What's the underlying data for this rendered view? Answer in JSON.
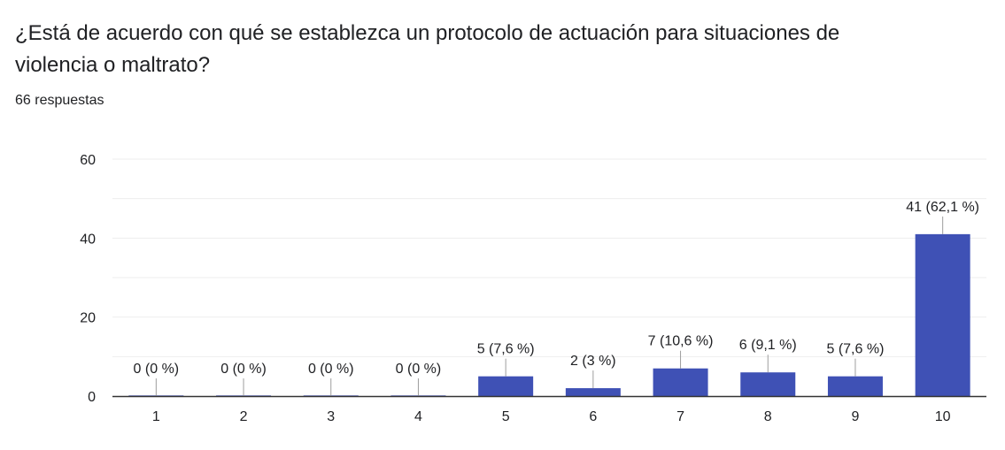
{
  "question": {
    "line1": "¿Está de acuerdo con qué se establezca un protocolo de actuación para situaciones de",
    "line2": "violencia o maltrato?"
  },
  "response_count": "66 respuestas",
  "colors": {
    "bar": "#3f51b5",
    "grid": "#eeeeee",
    "axis": "#333333",
    "leader": "#9e9e9e"
  },
  "chart_data": {
    "type": "bar",
    "title": "¿Está de acuerdo con qué se establezca un protocolo de actuación para situaciones de violencia o maltrato?",
    "categories": [
      "1",
      "2",
      "3",
      "4",
      "5",
      "6",
      "7",
      "8",
      "9",
      "10"
    ],
    "values": [
      0,
      0,
      0,
      0,
      5,
      2,
      7,
      6,
      5,
      41
    ],
    "data_labels": [
      "0 (0 %)",
      "0 (0 %)",
      "0 (0 %)",
      "0 (0 %)",
      "5 (7,6 %)",
      "2 (3 %)",
      "7 (10,6 %)",
      "6 (9,1 %)",
      "5 (7,6 %)",
      "41 (62,1 %)"
    ],
    "xlabel": "",
    "ylabel": "",
    "ylim": [
      0,
      60
    ],
    "yticks": [
      0,
      20,
      40,
      60
    ],
    "grid": true,
    "legend": "none"
  }
}
